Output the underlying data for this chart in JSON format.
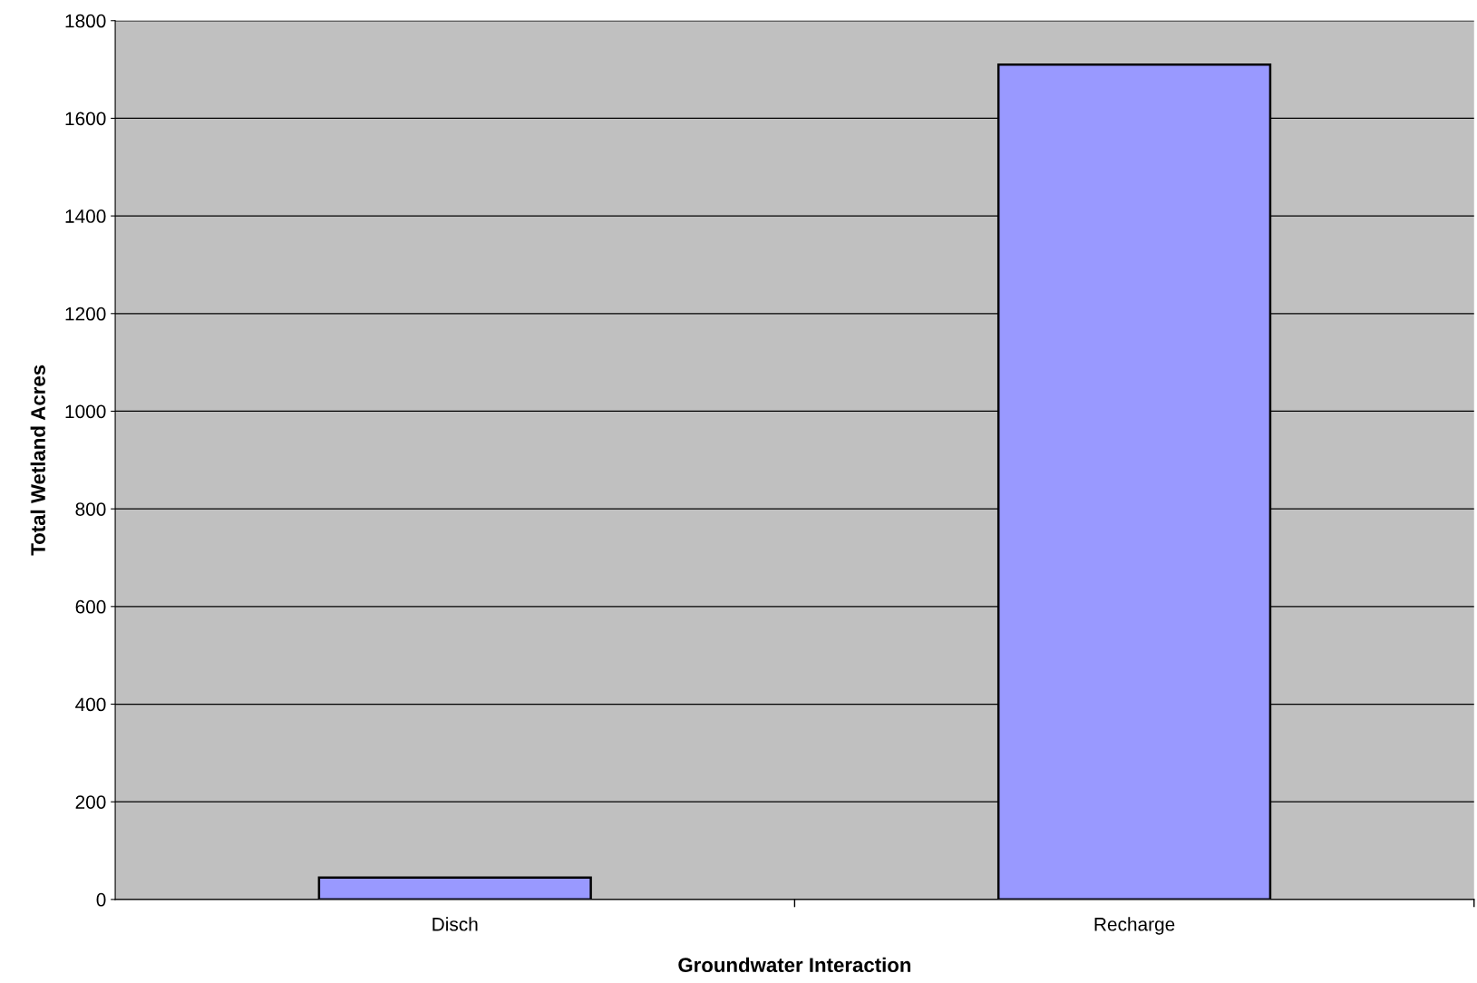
{
  "chart_data": {
    "type": "bar",
    "xlabel": "Groundwater Interaction",
    "ylabel": "Total Wetland Acres",
    "categories": [
      "Disch",
      "Recharge"
    ],
    "values": [
      45,
      1710
    ],
    "color": "#9999ff",
    "ylim": [
      0,
      1800
    ],
    "yticks": [
      0,
      200,
      400,
      600,
      800,
      1000,
      1200,
      1400,
      1600,
      1800
    ],
    "grid": "y",
    "legend": false
  }
}
